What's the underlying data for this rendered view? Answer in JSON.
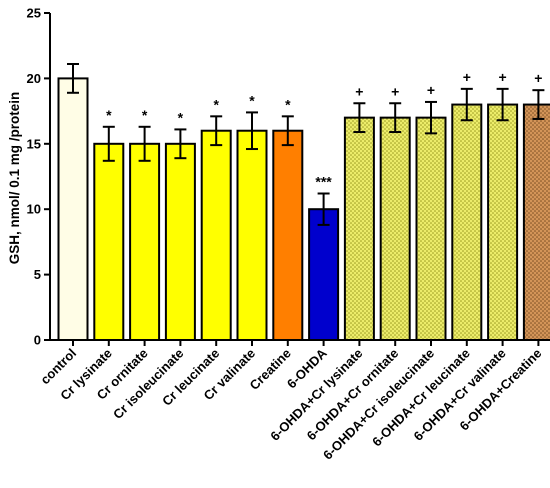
{
  "chart_data": {
    "type": "bar",
    "ylabel": "GSH, nmol/ 0.1 mg /protein",
    "ylim": [
      0,
      25
    ],
    "yticks": [
      0,
      5,
      10,
      15,
      20,
      25
    ],
    "categories": [
      "control",
      "Cr lysinate",
      "Cr ornitate",
      "Cr isoleucinate",
      "Cr leucinate",
      "Cr valinate",
      "Creatine",
      "6-OHDA",
      "6-OHDA+Cr lysinate",
      "6-OHDA+Cr ornitate",
      "6-OHDA+Cr isoleucinate",
      "6-OHDA+Cr leucinate",
      "6-OHDA+Cr valinate",
      "6-OHDA+Creatine"
    ],
    "values": [
      20,
      15,
      15,
      15,
      16,
      16,
      16,
      10,
      17,
      17,
      17,
      18,
      18,
      18
    ],
    "errors": [
      1.1,
      1.3,
      1.3,
      1.1,
      1.1,
      1.4,
      1.1,
      1.2,
      1.1,
      1.1,
      1.2,
      1.2,
      1.2,
      1.1
    ],
    "annotations": [
      "",
      "*",
      "*",
      "*",
      "*",
      "*",
      "*",
      "***",
      "+",
      "+",
      "+",
      "+",
      "+",
      "+"
    ],
    "colors": [
      "#fffde6",
      "#ffff00",
      "#ffff00",
      "#ffff00",
      "#ffff00",
      "#ffff00",
      "#ff7f00",
      "#0000cd",
      "#e6e65a",
      "#e6e65a",
      "#e6e65a",
      "#e6e65a",
      "#e6e65a",
      "#c98a4e"
    ],
    "patterned": [
      false,
      false,
      false,
      false,
      false,
      false,
      false,
      false,
      true,
      true,
      true,
      true,
      true,
      true
    ],
    "grid": false,
    "legend": "none"
  }
}
